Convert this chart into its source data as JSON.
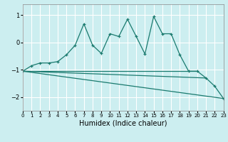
{
  "xlabel": "Humidex (Indice chaleur)",
  "bg_color": "#cceef0",
  "grid_color": "#ffffff",
  "line_color": "#1a7a6e",
  "xlim": [
    0,
    23
  ],
  "ylim": [
    -2.5,
    1.4
  ],
  "yticks": [
    -2,
    -1,
    0,
    1
  ],
  "xticks": [
    0,
    1,
    2,
    3,
    4,
    5,
    6,
    7,
    8,
    9,
    10,
    11,
    12,
    13,
    14,
    15,
    16,
    17,
    18,
    19,
    20,
    21,
    22,
    23
  ],
  "series1_x": [
    0,
    1,
    2,
    3,
    4,
    5,
    6,
    7,
    8,
    9,
    10,
    11,
    12,
    13,
    14,
    15,
    16,
    17,
    18,
    19,
    20,
    21,
    22,
    23
  ],
  "series1_y": [
    -1.05,
    -0.85,
    -0.75,
    -0.75,
    -0.7,
    -0.45,
    -0.1,
    0.68,
    -0.1,
    -0.4,
    0.32,
    0.22,
    0.85,
    0.22,
    -0.42,
    0.95,
    0.32,
    0.32,
    -0.45,
    -1.05,
    -1.05,
    -1.3,
    -1.6,
    -2.05
  ],
  "series2_x": [
    0,
    20
  ],
  "series2_y": [
    -1.05,
    -1.05
  ],
  "series3_x": [
    0,
    21
  ],
  "series3_y": [
    -1.05,
    -1.3
  ],
  "series4_x": [
    0,
    23
  ],
  "series4_y": [
    -1.05,
    -2.05
  ]
}
